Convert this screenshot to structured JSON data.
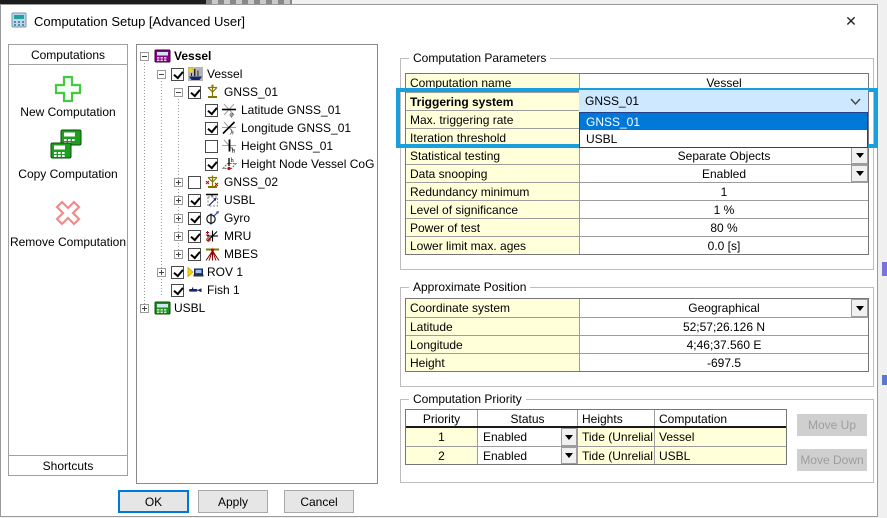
{
  "window": {
    "title": "Computation Setup [Advanced User]"
  },
  "sidebar": {
    "header": "Computations",
    "buttons": [
      {
        "label": "New Computation",
        "icon": "add-icon"
      },
      {
        "label": "Copy Computation",
        "icon": "copy-icon"
      },
      {
        "label": "Remove Computation",
        "icon": "remove-icon"
      }
    ],
    "footer": "Shortcuts"
  },
  "tree": {
    "items": [
      {
        "label": "Vessel",
        "level": 0,
        "expand": "minus",
        "checkbox": "none",
        "icon": "calc-purple",
        "bold": true
      },
      {
        "label": "Vessel",
        "level": 1,
        "expand": "minus",
        "checkbox": "checked",
        "icon": "ship"
      },
      {
        "label": "GNSS_01",
        "level": 2,
        "expand": "minus",
        "checkbox": "checked",
        "icon": "gnss"
      },
      {
        "label": "Latitude GNSS_01",
        "level": 3,
        "expand": "none",
        "checkbox": "checked",
        "icon": "lat"
      },
      {
        "label": "Longitude GNSS_01",
        "level": 3,
        "expand": "none",
        "checkbox": "checked",
        "icon": "lon"
      },
      {
        "label": "Height GNSS_01",
        "level": 3,
        "expand": "none",
        "checkbox": "unchecked",
        "icon": "hgt"
      },
      {
        "label": "Height Node Vessel CoG",
        "level": 3,
        "expand": "none",
        "checkbox": "checked",
        "icon": "hnode"
      },
      {
        "label": "GNSS_02",
        "level": 2,
        "expand": "plus",
        "checkbox": "unchecked",
        "icon": "gnss2"
      },
      {
        "label": "USBL",
        "level": 2,
        "expand": "plus",
        "checkbox": "checked",
        "icon": "usbl-node"
      },
      {
        "label": "Gyro",
        "level": 2,
        "expand": "plus",
        "checkbox": "checked",
        "icon": "gyro"
      },
      {
        "label": "MRU",
        "level": 2,
        "expand": "plus",
        "checkbox": "checked",
        "icon": "mru"
      },
      {
        "label": "MBES",
        "level": 2,
        "expand": "plus",
        "checkbox": "checked",
        "icon": "mbes"
      },
      {
        "label": "ROV 1",
        "level": 1,
        "expand": "plus",
        "checkbox": "checked",
        "icon": "rov"
      },
      {
        "label": "Fish 1",
        "level": 1,
        "expand": "none",
        "checkbox": "checked",
        "icon": "fish"
      },
      {
        "label": "USBL",
        "level": 0,
        "expand": "plus",
        "checkbox": "none",
        "icon": "calc-green"
      }
    ]
  },
  "parameters": {
    "group_title": "Computation Parameters",
    "rows": [
      {
        "label": "Computation name",
        "value": "Vessel"
      },
      {
        "label": "Triggering system",
        "value": ""
      },
      {
        "label": "Max. triggering rate",
        "value": ""
      },
      {
        "label": "Iteration threshold",
        "value": ""
      },
      {
        "label": "Statistical testing",
        "value": "Separate Objects",
        "dropdown": true
      },
      {
        "label": "Data snooping",
        "value": "Enabled",
        "dropdown": true
      },
      {
        "label": "Redundancy minimum",
        "value": "1"
      },
      {
        "label": "Level of significance",
        "value": "1 %"
      },
      {
        "label": "Power of test",
        "value": "80 %"
      },
      {
        "label": "Lower limit max. ages",
        "value": "0.0 [s]"
      }
    ],
    "combo": {
      "field_value": "GNSS_01",
      "options": [
        {
          "label": "GNSS_01",
          "selected": true
        },
        {
          "label": "USBL",
          "selected": false
        }
      ]
    }
  },
  "position": {
    "group_title": "Approximate Position",
    "rows": [
      {
        "label": "Coordinate system",
        "value": "Geographical",
        "dropdown": true
      },
      {
        "label": "Latitude",
        "value": "52;57;26.126 N"
      },
      {
        "label": "Longitude",
        "value": "4;46;37.560 E"
      },
      {
        "label": "Height",
        "value": "-697.5"
      }
    ]
  },
  "priority": {
    "group_title": "Computation Priority",
    "headers": [
      "Priority",
      "Status",
      "Heights",
      "Computation"
    ],
    "rows": [
      {
        "priority": "1",
        "status": "Enabled",
        "heights": "Tide (Unrelial",
        "computation": "Vessel"
      },
      {
        "priority": "2",
        "status": "Enabled",
        "heights": "Tide (Unrelial",
        "computation": "USBL"
      }
    ],
    "move_up": "Move Up",
    "move_down": "Move Down"
  },
  "footer": {
    "ok": "OK",
    "apply": "Apply",
    "cancel": "Cancel"
  },
  "colors": {
    "highlight_blue": "#19a0dc",
    "selection_blue": "#0078d7",
    "combo_field_bg": "#cde8ff",
    "row_label_bg": "#ffffd9"
  }
}
